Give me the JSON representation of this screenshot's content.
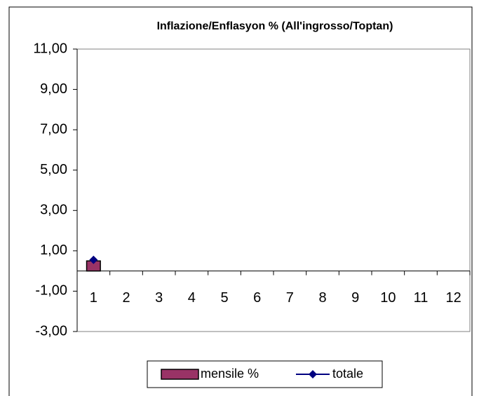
{
  "chart_data": {
    "type": "bar_line",
    "title": "Inflazione/Enflasyon % (All'ingrosso/Toptan)",
    "categories": [
      "1",
      "2",
      "3",
      "4",
      "5",
      "6",
      "7",
      "8",
      "9",
      "10",
      "11",
      "12"
    ],
    "series": [
      {
        "name": "mensile %",
        "type": "bar",
        "color": "#993366",
        "values": [
          0.5,
          null,
          null,
          null,
          null,
          null,
          null,
          null,
          null,
          null,
          null,
          null
        ]
      },
      {
        "name": "totale",
        "type": "line",
        "color": "#000080",
        "values": [
          0.55,
          null,
          null,
          null,
          null,
          null,
          null,
          null,
          null,
          null,
          null,
          null
        ]
      }
    ],
    "ylim": [
      -3,
      11
    ],
    "yticks": [
      {
        "value": -3,
        "label": "-3,00"
      },
      {
        "value": -1,
        "label": "-1,00"
      },
      {
        "value": 1,
        "label": "1,00"
      },
      {
        "value": 3,
        "label": "3,00"
      },
      {
        "value": 5,
        "label": "5,00"
      },
      {
        "value": 7,
        "label": "7,00"
      },
      {
        "value": 9,
        "label": "9,00"
      },
      {
        "value": 11,
        "label": "11,00"
      }
    ],
    "grid": false,
    "legend": "bottom"
  }
}
